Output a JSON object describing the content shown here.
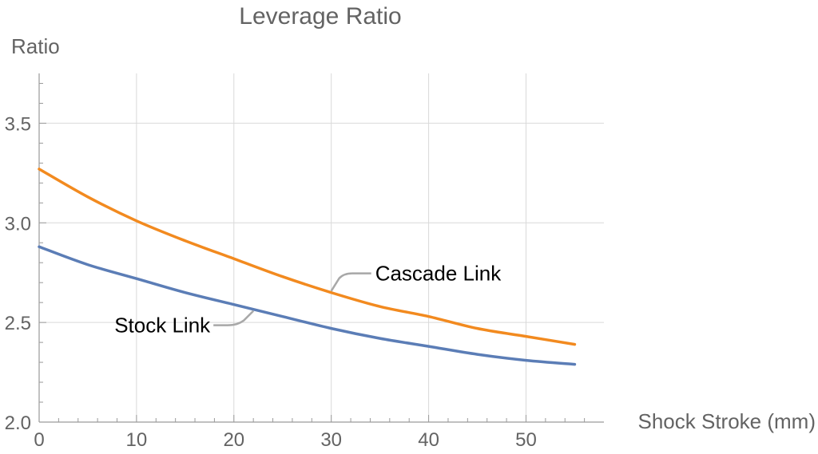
{
  "chart_data": {
    "type": "line",
    "title": "Leverage Ratio",
    "xlabel": "Shock Stroke (mm)",
    "ylabel": "Ratio",
    "xlim": [
      0,
      58
    ],
    "ylim": [
      2.0,
      3.75
    ],
    "xticks": [
      0,
      10,
      20,
      30,
      40,
      50
    ],
    "yticks": [
      2.0,
      2.5,
      3.0,
      3.5
    ],
    "ytick_labels": [
      "2.0",
      "2.5",
      "3.0",
      "3.5"
    ],
    "grid": true,
    "series": [
      {
        "name": "Cascade Link",
        "color": "#f28a1f",
        "x": [
          0,
          5,
          10,
          15,
          20,
          25,
          30,
          35,
          40,
          45,
          50,
          55
        ],
        "y": [
          3.27,
          3.13,
          3.01,
          2.91,
          2.82,
          2.73,
          2.65,
          2.58,
          2.53,
          2.47,
          2.43,
          2.39
        ]
      },
      {
        "name": "Stock Link",
        "color": "#5b7db6",
        "x": [
          0,
          5,
          10,
          15,
          20,
          25,
          30,
          35,
          40,
          45,
          50,
          55
        ],
        "y": [
          2.88,
          2.79,
          2.72,
          2.65,
          2.59,
          2.53,
          2.47,
          2.42,
          2.38,
          2.34,
          2.31,
          2.29
        ]
      }
    ],
    "annotations": [
      {
        "series": "Cascade Link",
        "text": "Cascade Link",
        "at_x": 30
      },
      {
        "series": "Stock Link",
        "text": "Stock Link",
        "at_x": 22
      }
    ]
  }
}
